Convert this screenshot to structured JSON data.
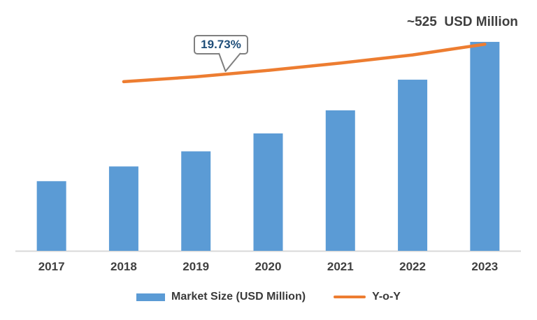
{
  "chart_data": {
    "type": "bar",
    "title": "",
    "xlabel": "",
    "ylabel": "",
    "categories": [
      "2017",
      "2018",
      "2019",
      "2020",
      "2021",
      "2022",
      "2023"
    ],
    "series": [
      {
        "name": "Market Size (USD Million)",
        "type": "bar",
        "axis": "primary",
        "color": "#5B9BD5",
        "values": [
          175,
          212,
          250,
          295,
          353,
          430,
          525
        ]
      },
      {
        "name": "Y-o-Y",
        "type": "line",
        "axis": "secondary",
        "color": "#ED7D31",
        "values_estimated_percent": [
          null,
          19.73,
          20.3,
          21.05,
          21.9,
          22.85,
          24.1
        ]
      }
    ],
    "ylim": [
      0,
      560
    ],
    "y2lim": [
      0,
      26
    ],
    "grid": false,
    "legend_position": "bottom",
    "axis_line_color": "#D9D9D9",
    "annotations": [
      {
        "type": "callout",
        "text": "19.73%",
        "points_to": "Y-o-Y line near 2019"
      },
      {
        "type": "label",
        "text": "~525  USD Million",
        "points_to": "2023 bar top / line end"
      }
    ]
  },
  "colors": {
    "bar": "#5B9BD5",
    "line": "#ED7D31",
    "axis": "#D9D9D9",
    "text": "#404040",
    "callout_text": "#1F4E79",
    "callout_border": "#7f7f7f"
  }
}
